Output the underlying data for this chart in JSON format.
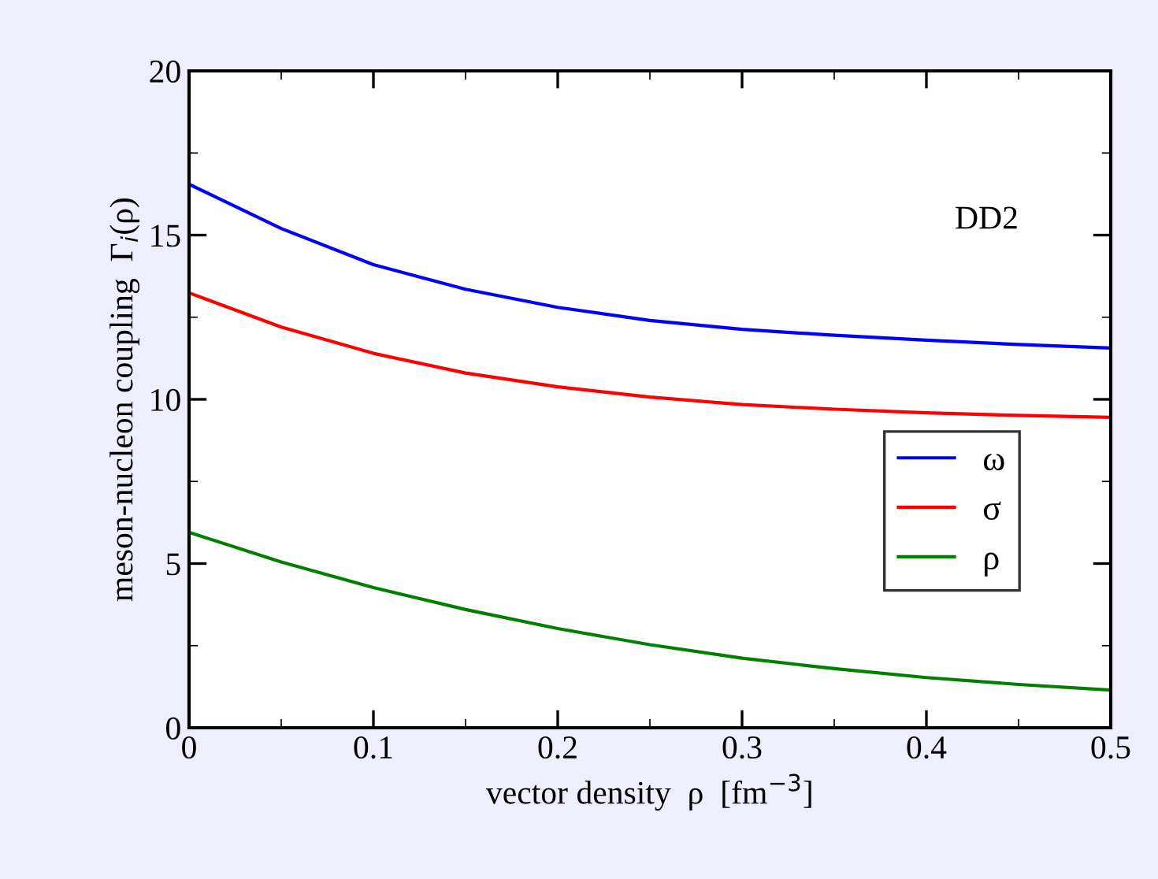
{
  "chart_data": {
    "type": "line",
    "xlabel": "vector density  ρ  [fm$^{−3}$]",
    "ylabel": "meson-nucleon coupling  Γ$_{i}$(ρ)",
    "annotations": [
      "DD2"
    ],
    "x": [
      0,
      0.05,
      0.1,
      0.15,
      0.2,
      0.25,
      0.3,
      0.35,
      0.4,
      0.45,
      0.5
    ],
    "series": [
      {
        "name": "ω",
        "color": "#0000ff",
        "values": [
          16.55,
          15.2,
          14.1,
          13.35,
          12.8,
          12.4,
          12.13,
          11.95,
          11.8,
          11.67,
          11.56
        ]
      },
      {
        "name": "σ",
        "color": "#ff0000",
        "values": [
          13.24,
          12.2,
          11.4,
          10.8,
          10.38,
          10.07,
          9.84,
          9.7,
          9.59,
          9.51,
          9.45
        ]
      },
      {
        "name": "ρ",
        "color": "#008000",
        "values": [
          5.95,
          5.05,
          4.27,
          3.6,
          3.02,
          2.53,
          2.12,
          1.8,
          1.53,
          1.32,
          1.15
        ]
      }
    ],
    "xlim": [
      0,
      0.5
    ],
    "xticks": [
      0,
      0.1,
      0.2,
      0.3,
      0.4,
      0.5
    ],
    "ylim": [
      0,
      20
    ],
    "yticks": [
      0,
      5,
      10,
      15,
      20
    ],
    "legend": "right",
    "grid": false,
    "marker": "none",
    "line_style": "solid"
  }
}
